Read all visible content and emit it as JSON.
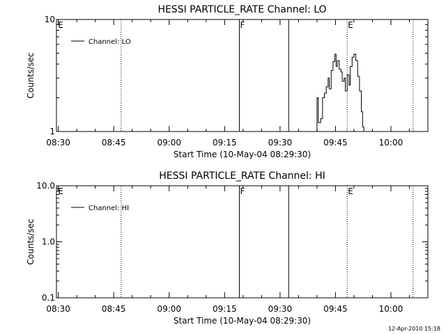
{
  "chart_data": [
    {
      "type": "line",
      "title": "HESSI PARTICLE_RATE Channel: LO",
      "xlabel": "Start Time (10-May-04 08:29:30)",
      "ylabel": "Counts/sec",
      "y_scale": "log",
      "xlim": [
        "08:29:30",
        "10:10:00"
      ],
      "ylim": [
        1,
        10
      ],
      "x_ticks": [
        "08:30",
        "08:45",
        "09:00",
        "09:15",
        "09:30",
        "09:45",
        "10:00"
      ],
      "y_ticks": [
        {
          "value": 1,
          "label": "1"
        },
        {
          "value": 10,
          "label": "10"
        }
      ],
      "legend": {
        "label": "Channel: LO",
        "position": "top-left"
      },
      "markers": [
        {
          "time": "08:29:45",
          "label": "E",
          "style": "none"
        },
        {
          "time": "08:47:00",
          "label": "",
          "style": "dotted"
        },
        {
          "time": "09:19:00",
          "label": "F",
          "style": "solid"
        },
        {
          "time": "09:32:20",
          "label": "",
          "style": "solid"
        },
        {
          "time": "09:48:10",
          "label": "E",
          "style": "dotted"
        },
        {
          "time": "10:06:00",
          "label": "",
          "style": "dotted"
        }
      ],
      "series": [
        {
          "name": "Channel: LO",
          "points": [
            [
              "09:39:00",
              0.9
            ],
            [
              "09:40:00",
              2.0
            ],
            [
              "09:40:20",
              1.2
            ],
            [
              "09:41:00",
              1.3
            ],
            [
              "09:41:30",
              2.0
            ],
            [
              "09:42:00",
              2.2
            ],
            [
              "09:42:30",
              2.5
            ],
            [
              "09:43:00",
              3.0
            ],
            [
              "09:43:20",
              2.4
            ],
            [
              "09:43:50",
              3.5
            ],
            [
              "09:44:20",
              4.2
            ],
            [
              "09:44:50",
              4.9
            ],
            [
              "09:45:10",
              3.8
            ],
            [
              "09:45:30",
              4.3
            ],
            [
              "09:46:00",
              3.6
            ],
            [
              "09:46:30",
              3.4
            ],
            [
              "09:46:50",
              2.8
            ],
            [
              "09:47:20",
              3.0
            ],
            [
              "09:47:40",
              2.3
            ],
            [
              "09:48:10",
              3.2
            ],
            [
              "09:48:40",
              2.6
            ],
            [
              "09:49:00",
              3.8
            ],
            [
              "09:49:30",
              4.6
            ],
            [
              "09:50:00",
              4.9
            ],
            [
              "09:50:30",
              4.3
            ],
            [
              "09:51:00",
              3.1
            ],
            [
              "09:51:30",
              2.3
            ],
            [
              "09:52:00",
              1.5
            ],
            [
              "09:52:20",
              1.1
            ],
            [
              "09:52:40",
              0.9
            ]
          ]
        }
      ]
    },
    {
      "type": "line",
      "title": "HESSI PARTICLE_RATE Channel: HI",
      "xlabel": "Start Time (10-May-04 08:29:30)",
      "ylabel": "Counts/sec",
      "y_scale": "log",
      "xlim": [
        "08:29:30",
        "10:10:00"
      ],
      "ylim": [
        0.1,
        10
      ],
      "x_ticks": [
        "08:30",
        "08:45",
        "09:00",
        "09:15",
        "09:30",
        "09:45",
        "10:00"
      ],
      "y_ticks": [
        {
          "value": 0.1,
          "label": "0.1"
        },
        {
          "value": 1,
          "label": "1.0"
        },
        {
          "value": 10,
          "label": "10.0"
        }
      ],
      "legend": {
        "label": "Channel: HI",
        "position": "top-left"
      },
      "markers": [
        {
          "time": "08:29:45",
          "label": "E",
          "style": "none"
        },
        {
          "time": "08:47:00",
          "label": "",
          "style": "dotted"
        },
        {
          "time": "09:19:00",
          "label": "F",
          "style": "solid"
        },
        {
          "time": "09:32:20",
          "label": "",
          "style": "solid"
        },
        {
          "time": "09:48:10",
          "label": "E",
          "style": "dotted"
        },
        {
          "time": "10:06:00",
          "label": "",
          "style": "dotted"
        }
      ],
      "series": [
        {
          "name": "Channel: HI",
          "points": []
        }
      ]
    }
  ],
  "footer": {
    "timestamp": "12-Apr-2010 15:18"
  }
}
